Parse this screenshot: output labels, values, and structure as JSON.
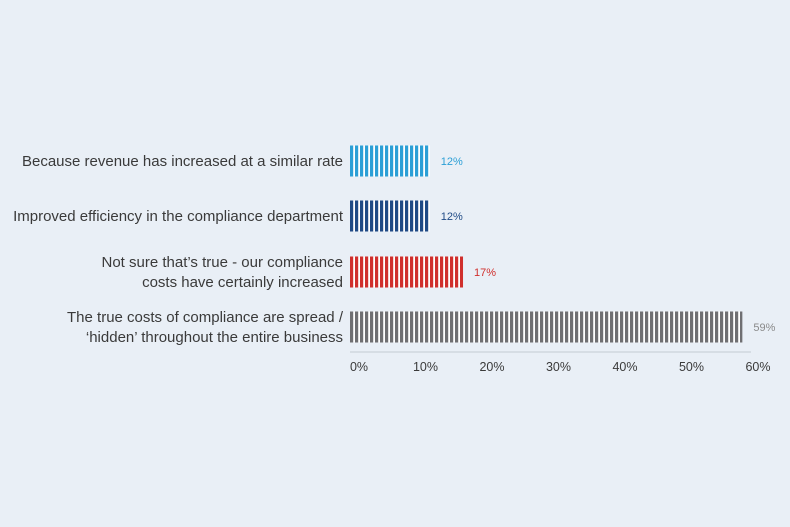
{
  "chart_data": {
    "type": "bar",
    "orientation": "horizontal",
    "categories": [
      [
        "Because revenue has increased at a similar rate"
      ],
      [
        "Improved efficiency in the compliance department"
      ],
      [
        "Not sure that’s true - our compliance",
        "costs have certainly increased"
      ],
      [
        "The true costs of compliance are spread /",
        "‘hidden’ throughout the entire business"
      ]
    ],
    "values": [
      12,
      12,
      17,
      59
    ],
    "value_labels": [
      "12%",
      "12%",
      "17%",
      "59%"
    ],
    "colors": [
      "#2b9fd6",
      "#1f4a85",
      "#d02f2c",
      "#6f6f72"
    ],
    "label_colors": [
      "#2b9fd6",
      "#1f4a85",
      "#d02f2c",
      "#8a8a8a"
    ],
    "xlim": [
      0,
      60
    ],
    "xticks": [
      0,
      10,
      20,
      30,
      40,
      50,
      60
    ],
    "xtick_labels": [
      "0%",
      "10%",
      "20%",
      "30%",
      "40%",
      "50%",
      "60%"
    ],
    "grid": false,
    "legend": "none",
    "title": "",
    "xlabel": "",
    "ylabel": ""
  }
}
